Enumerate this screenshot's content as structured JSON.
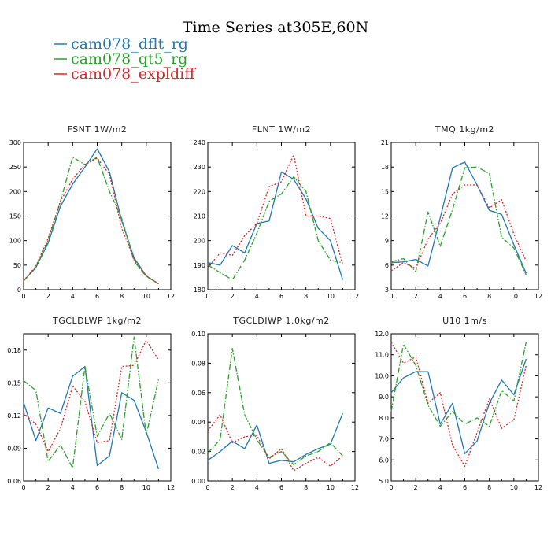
{
  "figure_title": "Time Series at305E,60N",
  "legend": [
    {
      "name": "cam078_dflt_rg",
      "color": "#1f77b4",
      "dash": "solid"
    },
    {
      "name": "cam078_qt5_rg",
      "color": "#2ca02c",
      "dash": "dashdot"
    },
    {
      "name": "cam078_expldiff",
      "color": "#d62728",
      "dash": "dotted"
    }
  ],
  "chart_data": [
    {
      "type": "line",
      "title": "FSNT   1W/m2",
      "x": [
        0,
        1,
        2,
        3,
        4,
        5,
        6,
        7,
        8,
        9,
        10,
        11
      ],
      "xlim": [
        0,
        12
      ],
      "xticks": [
        "0",
        "2",
        "4",
        "6",
        "8",
        "10",
        "12"
      ],
      "ylim": [
        0,
        300
      ],
      "yticks": [
        "0",
        "50",
        "100",
        "150",
        "200",
        "250",
        "300"
      ],
      "series": [
        {
          "name": "cam078_dflt_rg",
          "values": [
            18,
            45,
            95,
            170,
            215,
            250,
            287,
            240,
            140,
            65,
            28,
            12
          ]
        },
        {
          "name": "cam078_qt5_rg",
          "values": [
            18,
            45,
            100,
            180,
            270,
            255,
            270,
            200,
            145,
            58,
            27,
            12
          ]
        },
        {
          "name": "cam078_expldiff",
          "values": [
            18,
            48,
            105,
            180,
            225,
            255,
            268,
            235,
            125,
            62,
            28,
            12
          ]
        }
      ]
    },
    {
      "type": "line",
      "title": "FLNT   1W/m2",
      "x": [
        0,
        1,
        2,
        3,
        4,
        5,
        6,
        7,
        8,
        9,
        10,
        11
      ],
      "xlim": [
        0,
        12
      ],
      "xticks": [
        "0",
        "2",
        "4",
        "6",
        "8",
        "10",
        "12"
      ],
      "ylim": [
        180,
        240
      ],
      "yticks": [
        "180",
        "190",
        "200",
        "210",
        "220",
        "230",
        "240"
      ],
      "series": [
        {
          "name": "cam078_dflt_rg",
          "values": [
            191,
            190,
            198,
            195,
            207,
            208,
            228,
            225,
            217,
            205,
            200,
            184
          ]
        },
        {
          "name": "cam078_qt5_rg",
          "values": [
            190,
            187,
            184,
            192,
            203,
            216,
            219,
            226,
            220,
            200,
            192,
            191
          ]
        },
        {
          "name": "cam078_expldiff",
          "values": [
            189,
            195,
            194,
            202,
            207,
            222,
            224,
            235,
            210,
            210,
            209,
            190
          ]
        }
      ]
    },
    {
      "type": "line",
      "title": "TMQ   1kg/m2",
      "x": [
        0,
        1,
        2,
        3,
        4,
        5,
        6,
        7,
        8,
        9,
        10,
        11
      ],
      "xlim": [
        0,
        12
      ],
      "xticks": [
        "0",
        "2",
        "4",
        "6",
        "8",
        "10",
        "12"
      ],
      "ylim": [
        3,
        21
      ],
      "yticks": [
        "3",
        "6",
        "9",
        "12",
        "15",
        "18",
        "21"
      ],
      "series": [
        {
          "name": "cam078_dflt_rg",
          "values": [
            6.3,
            6.4,
            6.7,
            5.9,
            11.8,
            17.9,
            18.6,
            15.8,
            12.7,
            12.2,
            8.5,
            5.0
          ]
        },
        {
          "name": "cam078_qt5_rg",
          "values": [
            6.4,
            6.8,
            5.2,
            12.5,
            8.3,
            12.8,
            17.9,
            18.0,
            17.2,
            9.4,
            8.1,
            4.8
          ]
        },
        {
          "name": "cam078_expldiff",
          "values": [
            5.3,
            6.3,
            5.6,
            9.2,
            11.1,
            14.7,
            15.8,
            15.8,
            13.0,
            14.0,
            9.8,
            6.5
          ]
        }
      ]
    },
    {
      "type": "line",
      "title": "TGCLDLWP   1kg/m2",
      "x": [
        0,
        1,
        2,
        3,
        4,
        5,
        6,
        7,
        8,
        9,
        10,
        11
      ],
      "xlim": [
        0,
        12
      ],
      "xticks": [
        "0",
        "2",
        "4",
        "6",
        "8",
        "10",
        "12"
      ],
      "ylim": [
        0.06,
        0.195
      ],
      "yticks": [
        "0.06",
        "0.09",
        "0.12",
        "0.15",
        "0.18"
      ],
      "series": [
        {
          "name": "cam078_dflt_rg",
          "values": [
            0.132,
            0.097,
            0.127,
            0.122,
            0.156,
            0.165,
            0.074,
            0.083,
            0.141,
            0.134,
            0.105,
            0.071
          ]
        },
        {
          "name": "cam078_qt5_rg",
          "values": [
            0.152,
            0.143,
            0.078,
            0.093,
            0.072,
            0.165,
            0.101,
            0.122,
            0.098,
            0.192,
            0.102,
            0.153
          ]
        },
        {
          "name": "cam078_expldiff",
          "values": [
            0.122,
            0.112,
            0.087,
            0.108,
            0.147,
            0.133,
            0.095,
            0.097,
            0.165,
            0.166,
            0.189,
            0.171
          ]
        }
      ]
    },
    {
      "type": "line",
      "title": "TGCLDIWP   1.0kg/m2",
      "x": [
        0,
        1,
        2,
        3,
        4,
        5,
        6,
        7,
        8,
        9,
        10,
        11
      ],
      "xlim": [
        0,
        12
      ],
      "xticks": [
        "0",
        "2",
        "4",
        "6",
        "8",
        "10",
        "12"
      ],
      "ylim": [
        0.0,
        0.1
      ],
      "yticks": [
        "0.00",
        "0.02",
        "0.04",
        "0.06",
        "0.08",
        "0.10"
      ],
      "series": [
        {
          "name": "cam078_dflt_rg",
          "values": [
            0.014,
            0.02,
            0.027,
            0.022,
            0.038,
            0.012,
            0.014,
            0.013,
            0.018,
            0.022,
            0.025,
            0.046
          ]
        },
        {
          "name": "cam078_qt5_rg",
          "values": [
            0.019,
            0.028,
            0.09,
            0.045,
            0.028,
            0.016,
            0.02,
            0.011,
            0.017,
            0.02,
            0.026,
            0.017
          ]
        },
        {
          "name": "cam078_expldiff",
          "values": [
            0.034,
            0.045,
            0.026,
            0.03,
            0.031,
            0.015,
            0.022,
            0.007,
            0.012,
            0.016,
            0.01,
            0.017
          ]
        }
      ]
    },
    {
      "type": "line",
      "title": "U10   1m/s",
      "x": [
        0,
        1,
        2,
        3,
        4,
        5,
        6,
        7,
        8,
        9,
        10,
        11
      ],
      "xlim": [
        0,
        12
      ],
      "xticks": [
        "0",
        "2",
        "4",
        "6",
        "8",
        "10",
        "12"
      ],
      "ylim": [
        5.0,
        12.0
      ],
      "yticks": [
        "5.0",
        "6.0",
        "7.0",
        "8.0",
        "9.0",
        "10.0",
        "11.0",
        "12.0"
      ],
      "series": [
        {
          "name": "cam078_dflt_rg",
          "values": [
            9.2,
            9.9,
            10.2,
            10.2,
            7.7,
            8.7,
            6.3,
            6.9,
            8.7,
            9.8,
            9.1,
            10.8
          ]
        },
        {
          "name": "cam078_qt5_rg",
          "values": [
            8.3,
            11.5,
            10.5,
            8.6,
            7.6,
            8.3,
            7.7,
            8.0,
            7.6,
            9.3,
            8.8,
            11.6
          ]
        },
        {
          "name": "cam078_expldiff",
          "values": [
            11.6,
            10.6,
            10.9,
            8.7,
            9.2,
            6.7,
            5.7,
            7.3,
            8.9,
            7.5,
            7.9,
            10.5
          ]
        }
      ]
    }
  ]
}
